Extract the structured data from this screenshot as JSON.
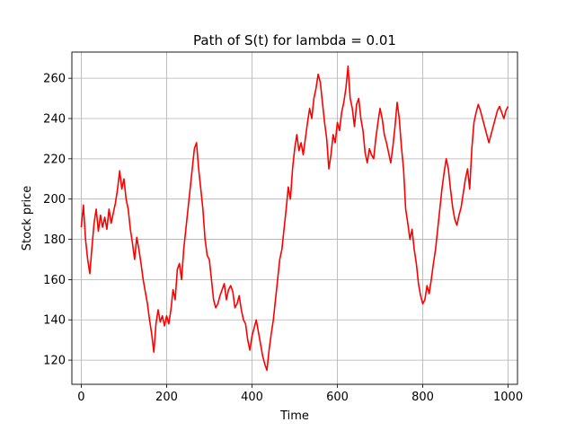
{
  "chart_data": {
    "type": "line",
    "title": "Path of S(t) for lambda = 0.01",
    "xlabel": "Time",
    "ylabel": "Stock price",
    "xlim": [
      -22,
      1022
    ],
    "ylim": [
      108,
      273
    ],
    "xticks": [
      0,
      200,
      400,
      600,
      800,
      1000
    ],
    "yticks": [
      120,
      140,
      160,
      180,
      200,
      220,
      240,
      260
    ],
    "grid": true,
    "line_color": "#ff0000",
    "series": [
      {
        "x": [
          0,
          5,
          10,
          15,
          20,
          25,
          30,
          35,
          40,
          45,
          50,
          55,
          60,
          65,
          70,
          75,
          80,
          85,
          90,
          95,
          100,
          105,
          110,
          115,
          120,
          125,
          130,
          135,
          140,
          145,
          150,
          155,
          160,
          165,
          170,
          175,
          180,
          185,
          190,
          195,
          200,
          205,
          210,
          215,
          220,
          225,
          230,
          235,
          240,
          245,
          250,
          255,
          260,
          265,
          270,
          275,
          280,
          285,
          290,
          295,
          300,
          305,
          310,
          315,
          320,
          325,
          330,
          335,
          340,
          345,
          350,
          355,
          360,
          365,
          370,
          375,
          380,
          385,
          390,
          395,
          400,
          405,
          410,
          415,
          420,
          425,
          430,
          435,
          440,
          445,
          450,
          455,
          460,
          465,
          470,
          475,
          480,
          485,
          490,
          495,
          500,
          505,
          510,
          515,
          520,
          525,
          530,
          535,
          540,
          545,
          550,
          555,
          560,
          565,
          570,
          575,
          580,
          585,
          590,
          595,
          600,
          605,
          610,
          615,
          620,
          625,
          630,
          635,
          640,
          645,
          650,
          655,
          660,
          665,
          670,
          675,
          680,
          685,
          690,
          695,
          700,
          705,
          710,
          715,
          720,
          725,
          730,
          735,
          740,
          745,
          750,
          755,
          760,
          765,
          770,
          775,
          780,
          785,
          790,
          795,
          800,
          805,
          810,
          815,
          820,
          825,
          830,
          835,
          840,
          845,
          850,
          855,
          860,
          865,
          870,
          875,
          880,
          885,
          890,
          895,
          900,
          905,
          910,
          915,
          920,
          925,
          930,
          935,
          940,
          945,
          950,
          955,
          960,
          965,
          970,
          975,
          980,
          985,
          990,
          995,
          1000
        ],
        "y": [
          186,
          197,
          180,
          170,
          163,
          176,
          188,
          195,
          184,
          192,
          186,
          191,
          185,
          195,
          188,
          193,
          198,
          205,
          214,
          205,
          210,
          200,
          195,
          185,
          178,
          170,
          181,
          175,
          168,
          160,
          154,
          148,
          140,
          133,
          124,
          138,
          145,
          139,
          142,
          137,
          142,
          138,
          145,
          155,
          150,
          165,
          168,
          160,
          175,
          185,
          195,
          205,
          215,
          225,
          228,
          215,
          205,
          195,
          180,
          172,
          170,
          160,
          150,
          146,
          148,
          152,
          155,
          158,
          150,
          155,
          157,
          154,
          146,
          148,
          152,
          145,
          140,
          138,
          130,
          125,
          132,
          136,
          140,
          134,
          128,
          122,
          118,
          115,
          125,
          133,
          140,
          150,
          160,
          170,
          175,
          185,
          195,
          206,
          200,
          215,
          225,
          232,
          224,
          228,
          222,
          230,
          238,
          245,
          240,
          250,
          255,
          262,
          258,
          248,
          238,
          230,
          215,
          222,
          232,
          228,
          238,
          234,
          243,
          248,
          255,
          266,
          250,
          245,
          236,
          247,
          250,
          240,
          234,
          223,
          218,
          225,
          222,
          220,
          230,
          238,
          245,
          240,
          232,
          228,
          223,
          218,
          226,
          236,
          248,
          240,
          226,
          215,
          195,
          188,
          180,
          185,
          175,
          168,
          158,
          152,
          148,
          150,
          157,
          153,
          160,
          168,
          175,
          185,
          195,
          205,
          213,
          220,
          215,
          205,
          196,
          190,
          187,
          192,
          196,
          203,
          210,
          215,
          205,
          225,
          238,
          243,
          247,
          244,
          240,
          236,
          232,
          228,
          232,
          236,
          240,
          244,
          246,
          243,
          240,
          244,
          246
        ]
      }
    ]
  }
}
